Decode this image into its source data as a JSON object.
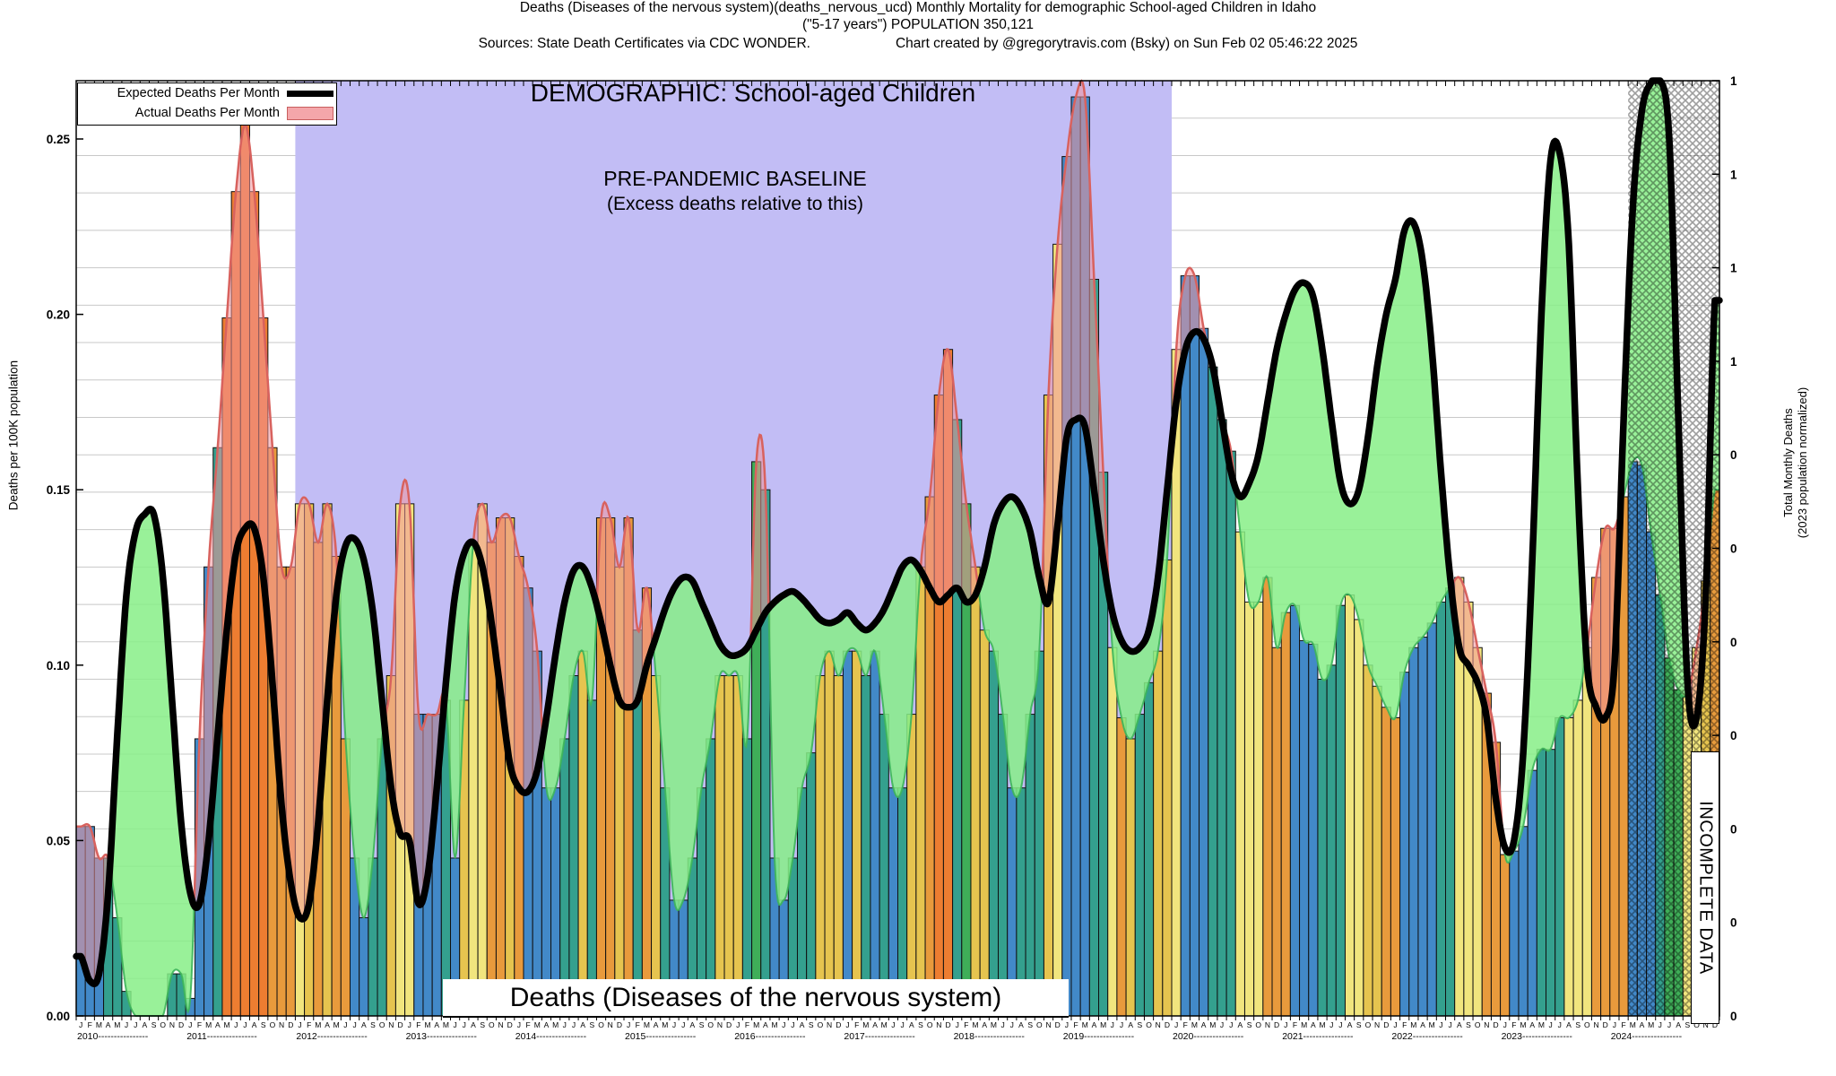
{
  "header": {
    "title_line1": "Deaths (Diseases of the nervous system)(deaths_nervous_ucd) Monthly Mortality for demographic School-aged Children in Idaho",
    "title_line2": "(\"5-17 years\") POPULATION 350,121",
    "source_left": "Sources: State Death Certificates via CDC WONDER.",
    "credit_right": "Chart created by @gregorytravis.com (Bsky) on Sun Feb 02 05:46:22 2025"
  },
  "legend": {
    "expected_label": "Expected Deaths Per Month",
    "actual_label": "Actual Deaths Per Month",
    "expected_color": "#000000",
    "actual_color": "#f4a6aa"
  },
  "annotations": {
    "demographic": "DEMOGRAPHIC: School-aged Children",
    "baseline_line1": "PRE-PANDEMIC BASELINE",
    "baseline_line2": "(Excess deaths relative to this)",
    "bottom_label": "Deaths (Diseases of the nervous system)",
    "incomplete_label": "INCOMPLETE DATA"
  },
  "axes": {
    "left_title": "Deaths per 100K population",
    "right_title_line1": "Total Monthly Deaths",
    "right_title_line2": "(2023 population normalized)",
    "left_ticks": [
      "0.00",
      "0.05",
      "0.10",
      "0.15",
      "0.20",
      "0.25"
    ],
    "right_ticks_top_to_bottom": [
      "1",
      "1",
      "1",
      "1",
      "0",
      "0",
      "0",
      "0",
      "0",
      "0",
      "0"
    ]
  },
  "chart_data": {
    "type": "bar",
    "subtype": "monthly bars + expected smoothed line with excess(pink)/deficit(green) shading",
    "title": "Deaths (Diseases of the nervous system) — School-aged Children, Idaho",
    "xlabel": "",
    "ylabel": "Deaths per 100K population",
    "ylim": [
      0,
      0.2667
    ],
    "month_letters": "JFMAMJJASOND",
    "years": [
      "2010",
      "2011",
      "2012",
      "2013",
      "2014",
      "2015",
      "2016",
      "2017",
      "2018",
      "2019",
      "2020",
      "2021",
      "2022",
      "2023",
      "2024"
    ],
    "grid": "on",
    "legend_position": "top-left",
    "colors": {
      "plot_bg": "#ffffff",
      "baseline_region": "#c2bdf5",
      "gridline": "#c8c8c8",
      "expected_line": "#000000",
      "excess_fill": "rgba(243,150,157,0.55)",
      "excess_edge": "#d8625e",
      "deficit_fill": "rgba(135,238,135,0.85)",
      "deficit_edge": "rgba(61,180,90,0.9)",
      "bar_palette": {
        "b": "#4289c8",
        "t": "#34a08e",
        "g": "#3fae58",
        "Y": "#f1e57e",
        "y": "#e6c44f",
        "o": "#e89a3c",
        "O": "#ed7d31"
      }
    },
    "regions": {
      "pre_pandemic_baseline_month_range": [
        24,
        120
      ],
      "incomplete_data_month_range": [
        170,
        180
      ]
    },
    "series": [
      {
        "name": "Actual Deaths Per Month",
        "type": "bar",
        "values": [
          0.054,
          0.054,
          0.045,
          0.045,
          0.028,
          0.007,
          0,
          0,
          0,
          0,
          0.012,
          0.012,
          0.005,
          0.079,
          0.128,
          0.162,
          0.199,
          0.235,
          0.254,
          0.235,
          0.199,
          0.162,
          0.128,
          0.128,
          0.146,
          0.146,
          0.135,
          0.146,
          0.131,
          0.079,
          0.045,
          0.028,
          0.045,
          0.079,
          0.097,
          0.146,
          0.146,
          0.086,
          0.086,
          0.086,
          0.09,
          0.045,
          0.09,
          0.135,
          0.146,
          0.135,
          0.142,
          0.142,
          0.131,
          0.122,
          0.104,
          0.065,
          0.065,
          0.079,
          0.097,
          0.104,
          0.09,
          0.142,
          0.142,
          0.128,
          0.142,
          0.11,
          0.122,
          0.097,
          0.065,
          0.033,
          0.033,
          0.045,
          0.065,
          0.079,
          0.097,
          0.097,
          0.097,
          0.079,
          0.158,
          0.15,
          0.045,
          0.033,
          0.045,
          0.065,
          0.075,
          0.097,
          0.104,
          0.097,
          0.104,
          0.104,
          0.097,
          0.104,
          0.086,
          0.065,
          0.065,
          0.086,
          0.128,
          0.148,
          0.177,
          0.19,
          0.17,
          0.146,
          0.128,
          0.11,
          0.104,
          0.086,
          0.065,
          0.065,
          0.086,
          0.104,
          0.177,
          0.22,
          0.245,
          0.262,
          0.262,
          0.21,
          0.155,
          0.105,
          0.085,
          0.079,
          0.086,
          0.095,
          0.104,
          0.13,
          0.19,
          0.211,
          0.211,
          0.196,
          0.185,
          0.17,
          0.161,
          0.138,
          0.118,
          0.118,
          0.125,
          0.105,
          0.115,
          0.117,
          0.107,
          0.106,
          0.096,
          0.1,
          0.117,
          0.12,
          0.113,
          0.1,
          0.094,
          0.088,
          0.085,
          0.098,
          0.105,
          0.108,
          0.112,
          0.118,
          0.122,
          0.125,
          0.118,
          0.105,
          0.092,
          0.078,
          0.046,
          0.047,
          0.054,
          0.07,
          0.076,
          0.076,
          0.085,
          0.085,
          0.09,
          0.105,
          0.125,
          0.139,
          0.139,
          0.148,
          0.158,
          0.157,
          0.138,
          0.12,
          0.102,
          0.093,
          0.092,
          0.105,
          0.124,
          0.15
        ],
        "bar_color_codes": "bbbtttttttttbbbtOOOOOoooYyoyoobbttyYYbbbtbyYYooyobbbbttytooyotoytbbtttyyytgtbbtttyyybytbtbtyyoOOtgyyttbtttyYbbbttYoyttyyYbbbtttYYYooobbbtttYYyyoobbbbttYYYooobbbtttYYYoooobbbtggYYyoo"
      },
      {
        "name": "Expected Deaths Per Month",
        "type": "line",
        "values": [
          0.017,
          0.01,
          0.012,
          0.035,
          0.08,
          0.12,
          0.138,
          0.143,
          0.143,
          0.125,
          0.09,
          0.055,
          0.035,
          0.032,
          0.05,
          0.08,
          0.11,
          0.132,
          0.139,
          0.139,
          0.125,
          0.095,
          0.06,
          0.038,
          0.028,
          0.032,
          0.055,
          0.09,
          0.12,
          0.134,
          0.136,
          0.13,
          0.115,
          0.09,
          0.065,
          0.052,
          0.05,
          0.032,
          0.04,
          0.065,
          0.095,
          0.12,
          0.132,
          0.135,
          0.128,
          0.112,
          0.092,
          0.072,
          0.065,
          0.064,
          0.07,
          0.085,
          0.103,
          0.118,
          0.127,
          0.128,
          0.122,
          0.112,
          0.1,
          0.09,
          0.088,
          0.09,
          0.1,
          0.108,
          0.116,
          0.122,
          0.125,
          0.124,
          0.118,
          0.112,
          0.106,
          0.103,
          0.103,
          0.105,
          0.11,
          0.115,
          0.118,
          0.12,
          0.121,
          0.119,
          0.116,
          0.113,
          0.112,
          0.113,
          0.115,
          0.112,
          0.11,
          0.112,
          0.116,
          0.122,
          0.128,
          0.13,
          0.127,
          0.122,
          0.118,
          0.12,
          0.122,
          0.118,
          0.12,
          0.128,
          0.14,
          0.146,
          0.148,
          0.145,
          0.138,
          0.125,
          0.118,
          0.14,
          0.165,
          0.17,
          0.168,
          0.15,
          0.13,
          0.115,
          0.107,
          0.104,
          0.105,
          0.11,
          0.125,
          0.15,
          0.175,
          0.19,
          0.195,
          0.193,
          0.185,
          0.17,
          0.155,
          0.148,
          0.152,
          0.16,
          0.175,
          0.19,
          0.2,
          0.207,
          0.209,
          0.205,
          0.19,
          0.17,
          0.152,
          0.146,
          0.15,
          0.165,
          0.185,
          0.2,
          0.21,
          0.224,
          0.226,
          0.215,
          0.19,
          0.155,
          0.125,
          0.105,
          0.1,
          0.095,
          0.085,
          0.062,
          0.048,
          0.05,
          0.075,
          0.13,
          0.2,
          0.244,
          0.246,
          0.22,
          0.15,
          0.1,
          0.088,
          0.085,
          0.1,
          0.17,
          0.23,
          0.258,
          0.266,
          0.267,
          0.25,
          0.17,
          0.095,
          0.085,
          0.12,
          0.204
        ]
      }
    ]
  }
}
